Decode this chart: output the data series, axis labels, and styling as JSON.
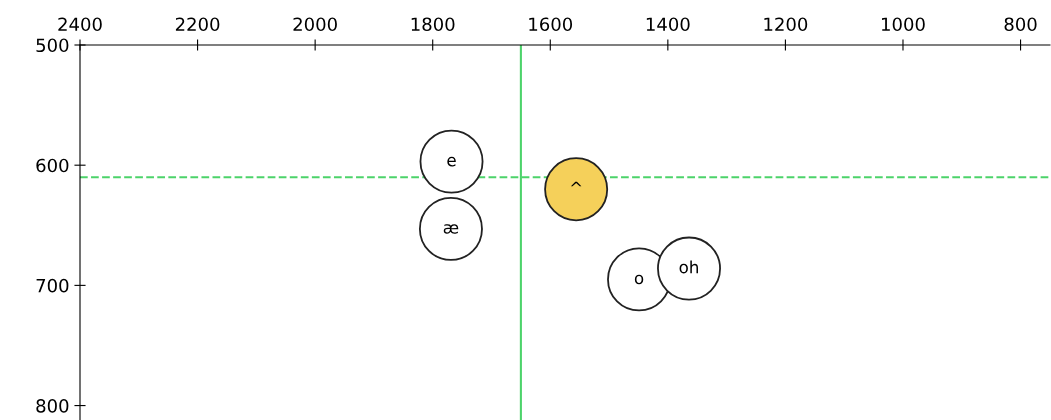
{
  "chart_data": {
    "type": "scatter",
    "x": [
      1768,
      1769,
      1556,
      1449,
      1364
    ],
    "values": [
      597,
      653,
      620,
      695,
      686
    ],
    "value_labels": [
      "e",
      "æ",
      "^",
      "o",
      "oh"
    ],
    "colors": [
      "#ffffff",
      "#ffffff",
      "#f5d05a",
      "#ffffff",
      "#ffffff"
    ],
    "marker": "circle",
    "xlim": [
      2400,
      750
    ],
    "xticks": [
      2400,
      2200,
      2000,
      1800,
      1600,
      1400,
      1200,
      1000,
      800
    ],
    "ylim": [
      812,
      500
    ],
    "yticks": [
      500,
      600,
      700,
      800
    ],
    "ref_lines": [
      {
        "axis": "x",
        "value": 1650,
        "color": "#4cd36a"
      },
      {
        "axis": "y",
        "value": 610,
        "color": "#4cd36a",
        "line_style": "dashed"
      }
    ],
    "grid": false,
    "legend": false
  }
}
